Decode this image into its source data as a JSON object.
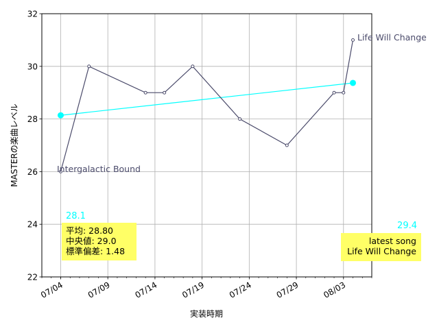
{
  "chart_data": {
    "type": "line",
    "xlabel": "実装時期",
    "ylabel": "MASTERの楽曲レベル",
    "ylim": [
      22,
      32
    ],
    "yticks": [
      "22",
      "24",
      "26",
      "28",
      "30",
      "32"
    ],
    "xlim": [
      "2024-07-02",
      "2024-08-06"
    ],
    "xticks": [
      {
        "date": "2024-07-04",
        "label": "07/04"
      },
      {
        "date": "2024-07-09",
        "label": "07/09"
      },
      {
        "date": "2024-07-14",
        "label": "07/14"
      },
      {
        "date": "2024-07-19",
        "label": "07/19"
      },
      {
        "date": "2024-07-24",
        "label": "07/24"
      },
      {
        "date": "2024-07-29",
        "label": "07/29"
      },
      {
        "date": "2024-08-03",
        "label": "08/03"
      }
    ],
    "grid": true,
    "series": [
      {
        "color": "#4a4a6a",
        "points": [
          {
            "x": "2024-07-04",
            "y": 26
          },
          {
            "x": "2024-07-07",
            "y": 30
          },
          {
            "x": "2024-07-13",
            "y": 29
          },
          {
            "x": "2024-07-15",
            "y": 29
          },
          {
            "x": "2024-07-18",
            "y": 30
          },
          {
            "x": "2024-07-23",
            "y": 28
          },
          {
            "x": "2024-07-28",
            "y": 27
          },
          {
            "x": "2024-08-02",
            "y": 29
          },
          {
            "x": "2024-08-03",
            "y": 29
          },
          {
            "x": "2024-08-04",
            "y": 31
          }
        ]
      }
    ],
    "trend": {
      "color": "#00ffff",
      "start": {
        "x": "2024-07-04",
        "y": 28.14
      },
      "end": {
        "x": "2024-08-04",
        "y": 29.37
      },
      "start_label": "28.1",
      "end_label": "29.4"
    },
    "annotations": {
      "first_song": "Intergalactic Bound",
      "last_song": "Life Will Change"
    },
    "stats_box": {
      "color": "#ffff66",
      "lines": [
        "平均: 28.80",
        "中央値: 29.0",
        "標準偏差:  1.48"
      ]
    },
    "latest_box": {
      "color": "#ffff66",
      "lines": [
        "latest song",
        "Life Will Change"
      ]
    }
  }
}
